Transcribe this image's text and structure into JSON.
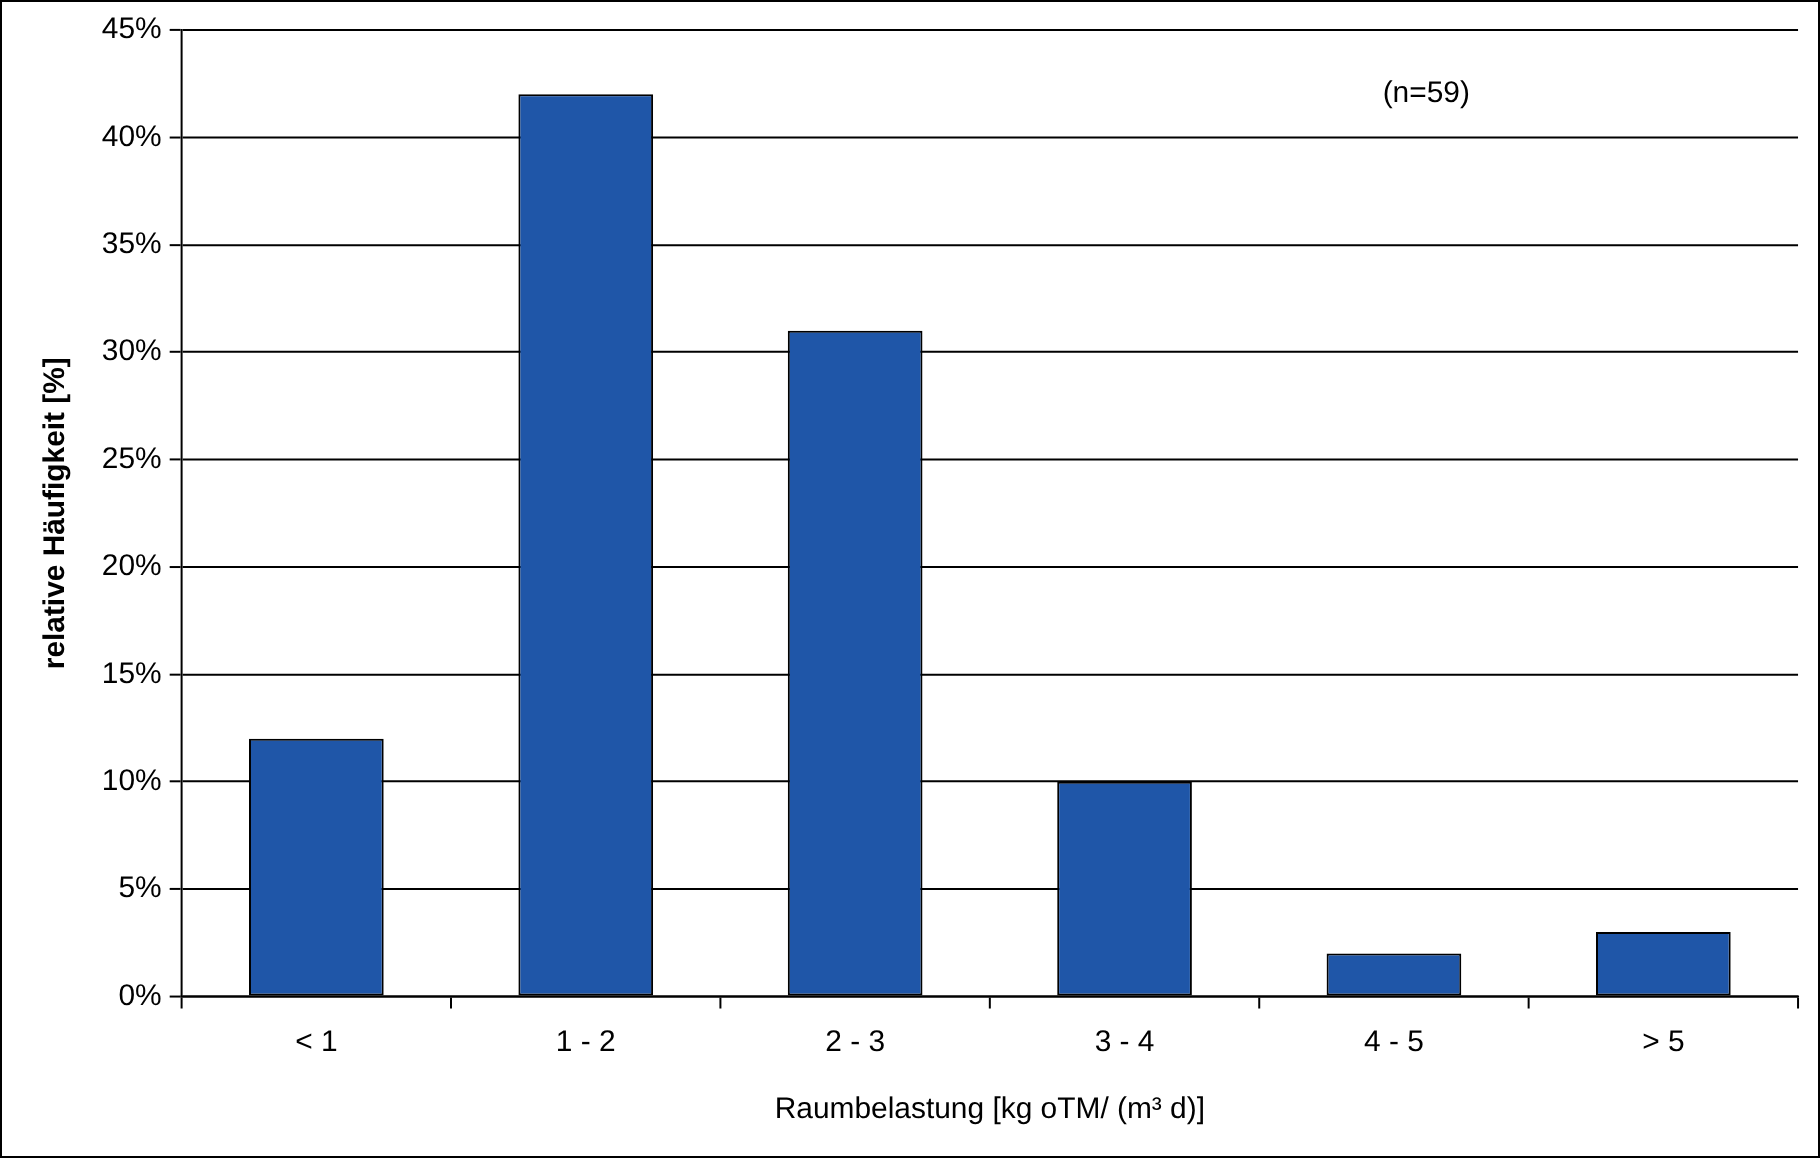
{
  "chart_data": {
    "type": "bar",
    "xlabel": "Raumbelastung [kg oTM/ (m³ d)]",
    "ylabel": "relative Häufigkeit [%]",
    "categories": [
      "< 1",
      "1 - 2",
      "2 - 3",
      "3 - 4",
      "4 - 5",
      "> 5"
    ],
    "values": [
      12,
      42,
      31,
      10,
      2,
      3
    ],
    "color": "#1f56a8",
    "ylim": [
      0,
      45
    ],
    "yticks": [
      {
        "value": 0,
        "label": "0%"
      },
      {
        "value": 5,
        "label": "5%"
      },
      {
        "value": 10,
        "label": "10%"
      },
      {
        "value": 15,
        "label": "15%"
      },
      {
        "value": 20,
        "label": "20%"
      },
      {
        "value": 25,
        "label": "25%"
      },
      {
        "value": 30,
        "label": "30%"
      },
      {
        "value": 35,
        "label": "35%"
      },
      {
        "value": 40,
        "label": "40%"
      },
      {
        "value": 45,
        "label": "45%"
      }
    ],
    "grid": "y",
    "legend": false,
    "annotations": [
      "(n=59)"
    ]
  }
}
